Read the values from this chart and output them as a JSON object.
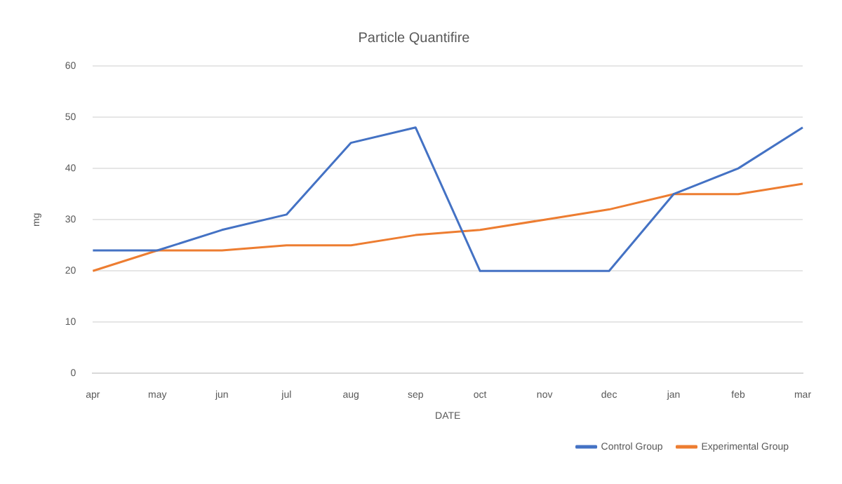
{
  "chart_data": {
    "type": "line",
    "title": "Particle Quantifire",
    "xlabel": "DATE",
    "ylabel": "mg",
    "categories": [
      "apr",
      "may",
      "jun",
      "jul",
      "aug",
      "sep",
      "oct",
      "nov",
      "dec",
      "jan",
      "feb",
      "mar"
    ],
    "series": [
      {
        "name": "Control Group",
        "color": "#4472c4",
        "values": [
          24,
          24,
          28,
          31,
          45,
          48,
          20,
          20,
          20,
          35,
          40,
          48
        ]
      },
      {
        "name": "Experimental Group",
        "color": "#ed7d31",
        "values": [
          20,
          24,
          24,
          25,
          25,
          27,
          28,
          30,
          32,
          35,
          35,
          37
        ]
      }
    ],
    "ylim": [
      0,
      60
    ],
    "yticks": [
      0,
      10,
      20,
      30,
      40,
      50,
      60
    ],
    "grid": "y",
    "legend": "bottom right",
    "marker": "none",
    "line_style": "solid"
  }
}
